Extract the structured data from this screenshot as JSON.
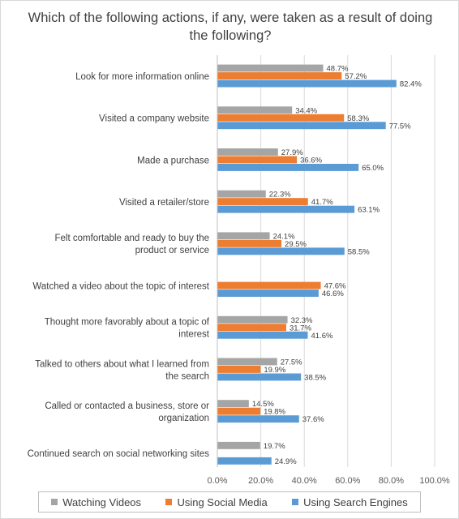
{
  "chart_data": {
    "type": "bar",
    "orientation": "horizontal",
    "title": "Which of the following actions, if any, were taken as a result of doing the following?",
    "categories": [
      "Look for more information online",
      "Visited a company website",
      "Made a purchase",
      "Visited a retailer/store",
      "Felt comfortable and ready to buy the product or service",
      "Watched a video about the topic of interest",
      "Thought more favorably about a topic of interest",
      "Talked to others about what I learned from the search",
      "Called or contacted a business, store or organization",
      "Continued search on social networking sites"
    ],
    "series": [
      {
        "name": "Watching Videos",
        "color": "#a5a5a5",
        "values": [
          48.7,
          34.4,
          27.9,
          22.3,
          24.1,
          null,
          32.3,
          27.5,
          14.5,
          19.7
        ],
        "labels": [
          "48.7%",
          "34.4%",
          "27.9%",
          "22.3%",
          "24.1%",
          "",
          "32.3%",
          "27.5%",
          "14.5%",
          "19.7%"
        ]
      },
      {
        "name": "Using Social Media",
        "color": "#ed7d31",
        "values": [
          57.2,
          58.3,
          36.6,
          41.7,
          29.5,
          47.6,
          31.7,
          19.9,
          19.8,
          null
        ],
        "labels": [
          "57.2%",
          "58.3%",
          "36.6%",
          "41.7%",
          "29.5%",
          "47.6%",
          "31.7%",
          "19.9%",
          "19.8%",
          ""
        ]
      },
      {
        "name": "Using Search Engines",
        "color": "#5b9bd5",
        "values": [
          82.4,
          77.5,
          65.0,
          63.1,
          58.5,
          46.6,
          41.6,
          38.5,
          37.6,
          24.9
        ],
        "labels": [
          "82.4%",
          "77.5%",
          "65.0%",
          "63.1%",
          "58.5%",
          "46.6%",
          "41.6%",
          "38.5%",
          "37.6%",
          "24.9%"
        ]
      }
    ],
    "xlim": [
      0,
      100
    ],
    "x_ticks": [
      "0.0%",
      "20.0%",
      "40.0%",
      "60.0%",
      "80.0%",
      "100.0%"
    ],
    "grid": true,
    "legend_position": "bottom"
  }
}
